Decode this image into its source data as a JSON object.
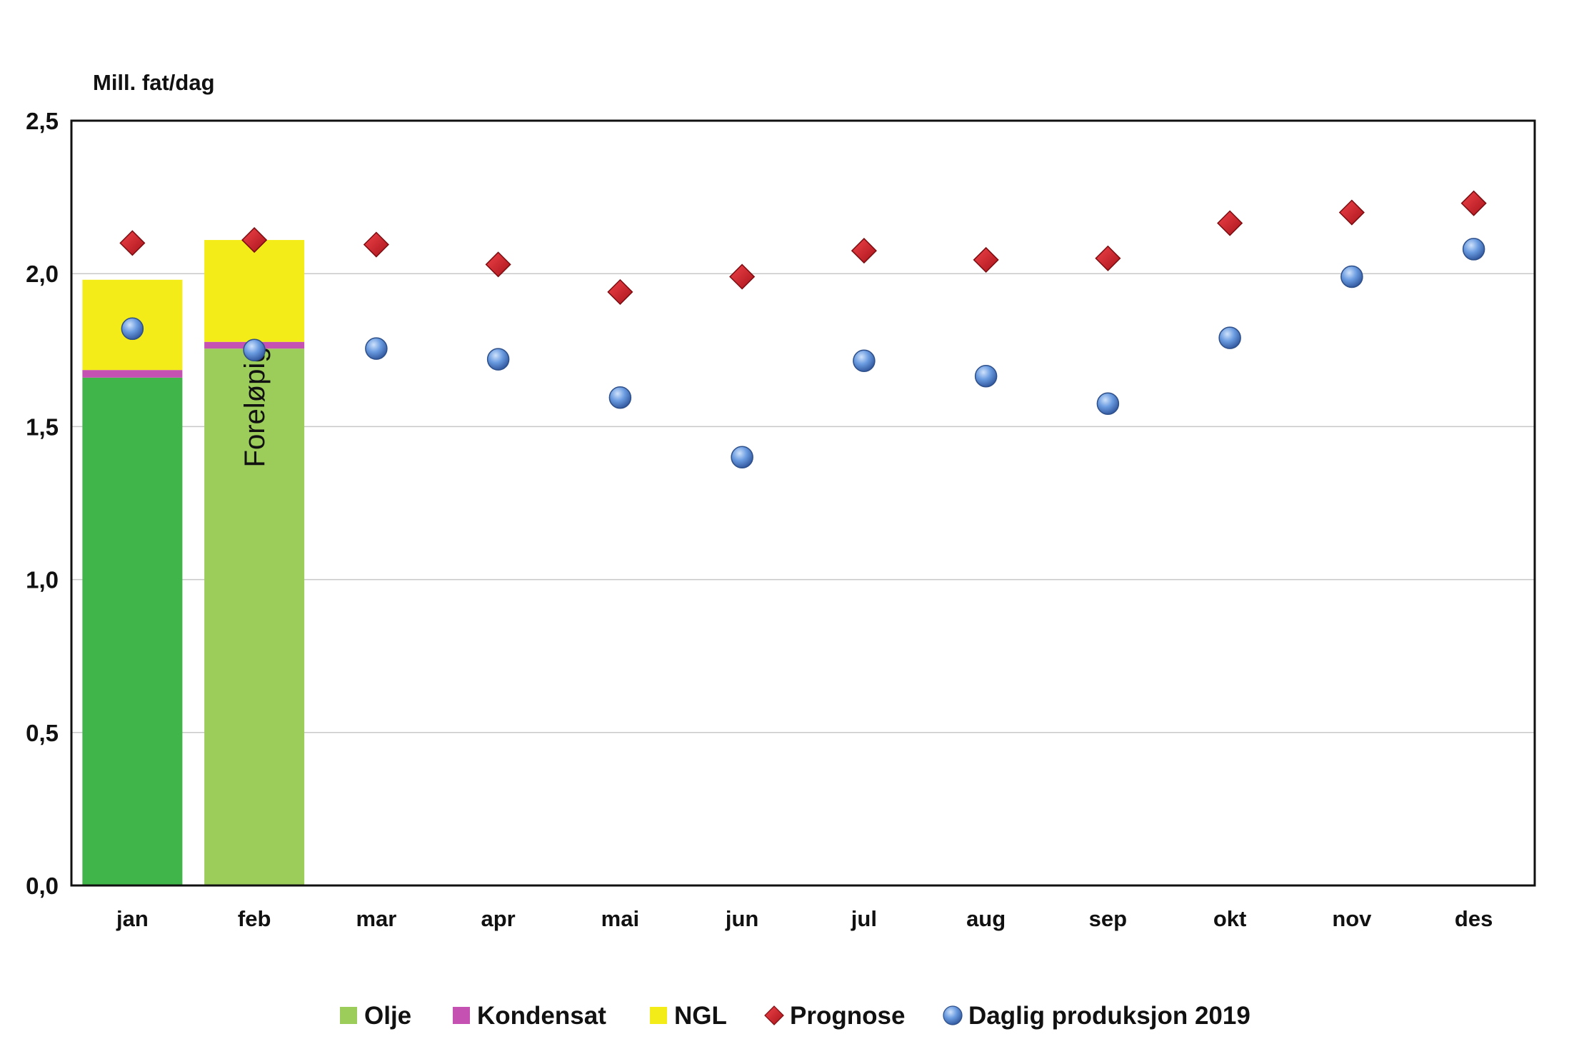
{
  "chart_data": {
    "type": "bar",
    "unit_label": "Mill. fat/dag",
    "categories": [
      "jan",
      "feb",
      "mar",
      "apr",
      "mai",
      "jun",
      "jul",
      "aug",
      "sep",
      "okt",
      "nov",
      "des"
    ],
    "ylim": [
      0,
      2.5
    ],
    "yticks": [
      "0,0",
      "0,5",
      "1,0",
      "1,5",
      "2,0",
      "2,5"
    ],
    "ytick_values": [
      0,
      0.5,
      1.0,
      1.5,
      2.0,
      2.5
    ],
    "grid": true,
    "legend_position": "bottom",
    "bar_annotation": {
      "category": "feb",
      "text": "Foreløpig"
    },
    "stacked_series": [
      {
        "name": "Olje",
        "color": "#9ccc5a",
        "values": [
          1.66,
          1.755,
          null,
          null,
          null,
          null,
          null,
          null,
          null,
          null,
          null,
          null
        ]
      },
      {
        "name": "Kondensat",
        "color": "#c552b2",
        "values": [
          0.025,
          0.022,
          null,
          null,
          null,
          null,
          null,
          null,
          null,
          null,
          null,
          null
        ]
      },
      {
        "name": "NGL",
        "color": "#f3ec18",
        "values": [
          0.295,
          0.333,
          null,
          null,
          null,
          null,
          null,
          null,
          null,
          null,
          null,
          null
        ]
      }
    ],
    "olje_colors_by_bar": [
      "#3fb54a",
      "#9ccc5a"
    ],
    "point_series": [
      {
        "name": "Prognose",
        "marker": "diamond",
        "color": "#d42027",
        "values": [
          2.1,
          2.11,
          2.095,
          2.03,
          1.94,
          1.99,
          2.075,
          2.045,
          2.05,
          2.165,
          2.2,
          2.23
        ]
      },
      {
        "name": "Daglig produksjon 2019",
        "marker": "circle",
        "color": "#5b8fd8",
        "values": [
          1.82,
          1.75,
          1.755,
          1.72,
          1.595,
          1.4,
          1.715,
          1.665,
          1.575,
          1.79,
          1.99,
          2.08
        ]
      }
    ]
  }
}
